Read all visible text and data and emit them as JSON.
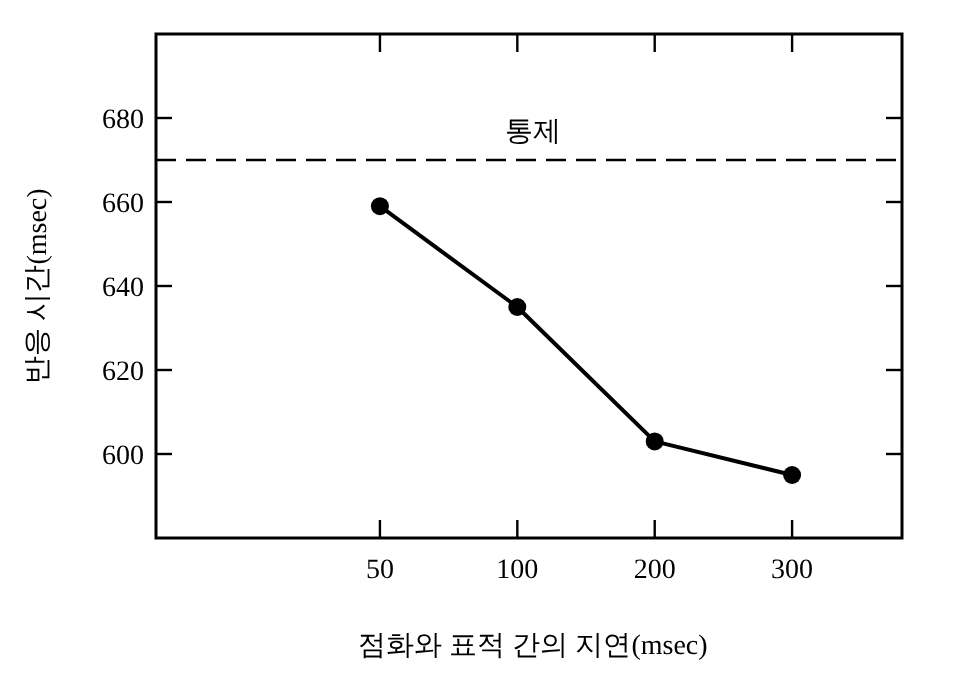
{
  "chart_data": {
    "type": "line",
    "xlabel": "점화와 표적 간의 지연(msec)",
    "ylabel": "반응 시간(msec)",
    "categories": [
      "50",
      "100",
      "200",
      "300"
    ],
    "series": [
      {
        "color": "#000000",
        "values": [
          659,
          635,
          603,
          595
        ]
      }
    ],
    "marker": "circle",
    "line_style": "solid",
    "ylim": [
      580,
      700
    ],
    "yticks": [
      600,
      620,
      640,
      660,
      680
    ],
    "ref_lines": [
      {
        "axis": "y",
        "value": 670,
        "label": "통제",
        "line_style": "dashed",
        "color": "#000000"
      }
    ]
  }
}
